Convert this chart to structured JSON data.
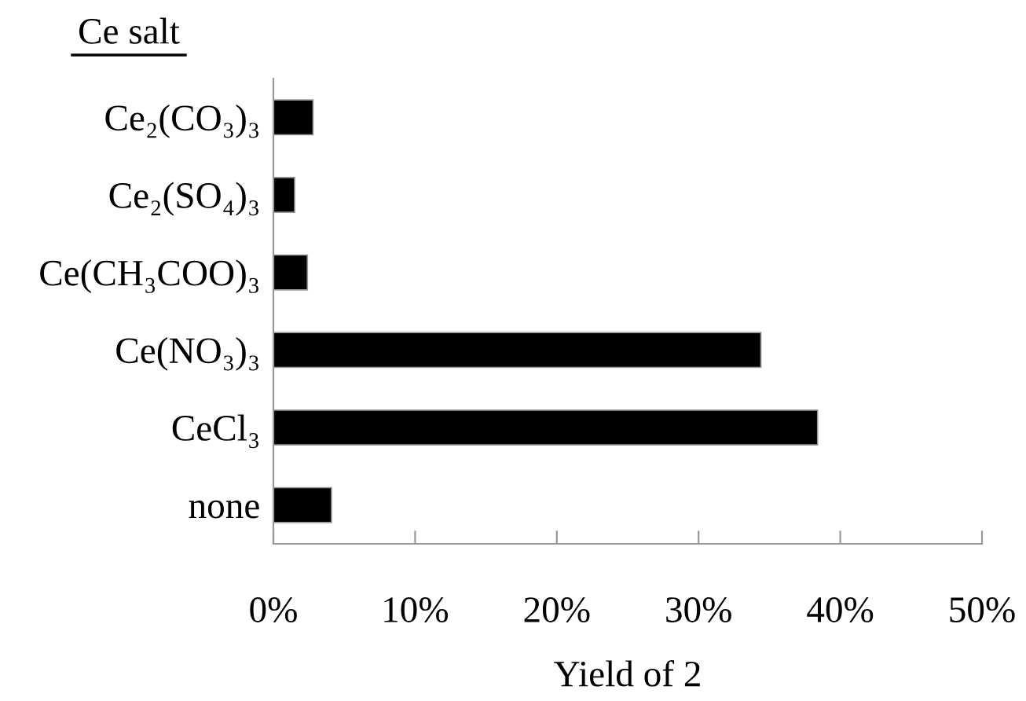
{
  "chart_data": {
    "type": "bar",
    "orientation": "horizontal",
    "xlabel": "Yield of 2",
    "annotations": [
      "Ce salt"
    ],
    "categories": [
      "Ce₂(CO₃)₃",
      "Ce₂(SO₄)₃",
      "Ce(CH₃COO)₃",
      "Ce(NO₃)₃",
      "CeCl₃",
      "none"
    ],
    "values": [
      2.8,
      1.5,
      2.4,
      34.4,
      38.4,
      4.1
    ],
    "color": "#000000",
    "xlim": [
      0,
      50
    ],
    "xticks": [
      {
        "value": 0,
        "label": "0%"
      },
      {
        "value": 10,
        "label": "10%"
      },
      {
        "value": 20,
        "label": "20%"
      },
      {
        "value": 30,
        "label": "30%"
      },
      {
        "value": 40,
        "label": "40%"
      },
      {
        "value": 50,
        "label": "50%"
      }
    ],
    "grid": false,
    "legend": false
  }
}
